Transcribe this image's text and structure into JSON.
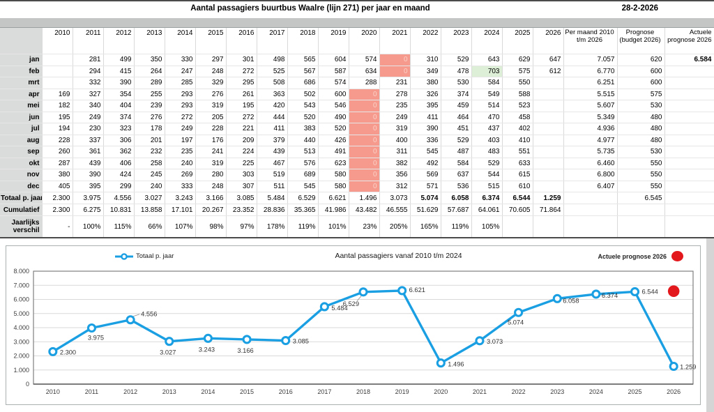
{
  "title": "Aantal passagiers buurtbus Waalre (lijn 271) per jaar en maand",
  "date": "28-2-2026",
  "colors": {
    "accent_blue": "#1b9fe3",
    "accent_red": "#e3181d",
    "salmon_fill": "#f59a8c",
    "green_fill": "#ddefd6",
    "band_gray": "#c3c6c5",
    "label_gray": "#dadcdb"
  },
  "table": {
    "years": [
      "2010",
      "2011",
      "2012",
      "2013",
      "2014",
      "2015",
      "2016",
      "2017",
      "2018",
      "2019",
      "2020",
      "2021",
      "2022",
      "2023",
      "2024",
      "2025",
      "2026"
    ],
    "extra_headers": [
      "Per maand 2010 t/m 2026",
      "Prognose (budget 2026)",
      "Actuele prognose 2026"
    ],
    "months": [
      {
        "label": "jan",
        "values": [
          "",
          "281",
          "499",
          "350",
          "330",
          "297",
          "301",
          "498",
          "565",
          "604",
          "574",
          "0",
          "310",
          "529",
          "643",
          "629",
          "647"
        ],
        "per": "7.057",
        "prog": "620",
        "act": "6.584",
        "fills": {
          "11": "salmon"
        },
        "corners": {
          "11": "red-tr"
        }
      },
      {
        "label": "feb",
        "values": [
          "",
          "294",
          "415",
          "264",
          "247",
          "248",
          "272",
          "525",
          "567",
          "587",
          "634",
          "0",
          "349",
          "478",
          "703",
          "575",
          "612"
        ],
        "per": "6.770",
        "prog": "600",
        "act": "",
        "fills": {
          "11": "salmon",
          "14": "greenfill"
        },
        "corners": {
          "11": "red-tr",
          "14": "red-tr"
        }
      },
      {
        "label": "mrt",
        "values": [
          "",
          "332",
          "390",
          "289",
          "285",
          "329",
          "295",
          "508",
          "686",
          "574",
          "288",
          "231",
          "380",
          "530",
          "584",
          "550",
          ""
        ],
        "per": "6.251",
        "prog": "600",
        "act": "",
        "fills": {},
        "corners": {
          "10": "red-tr",
          "11": "red-tr"
        }
      },
      {
        "label": "apr",
        "values": [
          "169",
          "327",
          "354",
          "255",
          "293",
          "276",
          "261",
          "363",
          "502",
          "600",
          "0",
          "278",
          "326",
          "374",
          "549",
          "588",
          ""
        ],
        "per": "5.515",
        "prog": "575",
        "act": "",
        "fills": {
          "10": "salmon"
        },
        "corners": {}
      },
      {
        "label": "mei",
        "values": [
          "182",
          "340",
          "404",
          "239",
          "293",
          "319",
          "195",
          "420",
          "543",
          "546",
          "0",
          "235",
          "395",
          "459",
          "514",
          "523",
          ""
        ],
        "per": "5.607",
        "prog": "530",
        "act": "",
        "fills": {
          "10": "salmon"
        },
        "corners": {}
      },
      {
        "label": "jun",
        "values": [
          "195",
          "249",
          "374",
          "276",
          "272",
          "205",
          "272",
          "444",
          "520",
          "490",
          "0",
          "249",
          "411",
          "464",
          "470",
          "458",
          ""
        ],
        "per": "5.349",
        "prog": "480",
        "act": "",
        "fills": {
          "10": "salmon"
        },
        "corners": {}
      },
      {
        "label": "jul",
        "values": [
          "194",
          "230",
          "323",
          "178",
          "249",
          "228",
          "221",
          "411",
          "383",
          "520",
          "0",
          "319",
          "390",
          "451",
          "437",
          "402",
          ""
        ],
        "per": "4.936",
        "prog": "480",
        "act": "",
        "fills": {
          "10": "salmon"
        },
        "corners": {}
      },
      {
        "label": "aug",
        "values": [
          "228",
          "337",
          "306",
          "201",
          "197",
          "176",
          "209",
          "379",
          "440",
          "426",
          "0",
          "400",
          "336",
          "529",
          "403",
          "410",
          ""
        ],
        "per": "4.977",
        "prog": "480",
        "act": "",
        "fills": {
          "10": "salmon"
        },
        "corners": {}
      },
      {
        "label": "sep",
        "values": [
          "260",
          "361",
          "362",
          "232",
          "235",
          "241",
          "224",
          "439",
          "513",
          "491",
          "0",
          "311",
          "545",
          "487",
          "483",
          "551",
          ""
        ],
        "per": "5.735",
        "prog": "530",
        "act": "",
        "fills": {
          "10": "salmon"
        },
        "corners": {}
      },
      {
        "label": "okt",
        "values": [
          "287",
          "439",
          "406",
          "258",
          "240",
          "319",
          "225",
          "467",
          "576",
          "623",
          "0",
          "382",
          "492",
          "584",
          "529",
          "633",
          ""
        ],
        "per": "6.460",
        "prog": "550",
        "act": "",
        "fills": {
          "10": "salmon"
        },
        "corners": {}
      },
      {
        "label": "nov",
        "values": [
          "380",
          "390",
          "424",
          "245",
          "269",
          "280",
          "303",
          "519",
          "689",
          "580",
          "0",
          "356",
          "569",
          "637",
          "544",
          "615",
          ""
        ],
        "per": "6.800",
        "prog": "550",
        "act": "",
        "fills": {
          "10": "salmon"
        },
        "corners": {}
      },
      {
        "label": "dec",
        "values": [
          "405",
          "395",
          "299",
          "240",
          "333",
          "248",
          "307",
          "511",
          "545",
          "580",
          "0",
          "312",
          "571",
          "536",
          "515",
          "610",
          ""
        ],
        "per": "6.407",
        "prog": "550",
        "act": "",
        "fills": {
          "10": "salmon"
        },
        "corners": {}
      }
    ],
    "summary": [
      {
        "label": "Totaal p. jaar",
        "values": [
          "2.300",
          "3.975",
          "4.556",
          "3.027",
          "3.243",
          "3.166",
          "3.085",
          "5.484",
          "6.529",
          "6.621",
          "1.496",
          "3.073",
          "5.074",
          "6.058",
          "6.374",
          "6.544",
          "1.259"
        ],
        "per": "",
        "prog": "6.545",
        "act": "",
        "bold_from": 12,
        "corners": {
          "13": "green-tr",
          "14": "green-tr",
          "15": "green-tr",
          "16": "green-tr"
        }
      },
      {
        "label": "Cumulatief",
        "values": [
          "2.300",
          "6.275",
          "10.831",
          "13.858",
          "17.101",
          "20.267",
          "23.352",
          "28.836",
          "35.365",
          "41.986",
          "43.482",
          "46.555",
          "51.629",
          "57.687",
          "64.061",
          "70.605",
          "71.864"
        ],
        "per": "",
        "prog": "",
        "act": "",
        "corners": {}
      },
      {
        "label": "Jaarlijks verschil",
        "values": [
          "-",
          "100%",
          "115%",
          "66%",
          "107%",
          "98%",
          "97%",
          "178%",
          "119%",
          "101%",
          "23%",
          "205%",
          "165%",
          "119%",
          "105%",
          "",
          ""
        ],
        "per": "",
        "prog": "",
        "act": "",
        "corners": {}
      }
    ]
  },
  "chart_data": {
    "type": "line",
    "title": "Aantal passagiers vanaf 2010 t/m 2024",
    "categories": [
      "2010",
      "2011",
      "2012",
      "2013",
      "2014",
      "2015",
      "2016",
      "2017",
      "2018",
      "2019",
      "2020",
      "2021",
      "2022",
      "2023",
      "2024",
      "2025",
      "2026"
    ],
    "series": [
      {
        "name": "Totaal p. jaar",
        "values": [
          2300,
          3975,
          4556,
          3027,
          3243,
          3166,
          3085,
          5484,
          6529,
          6621,
          1496,
          3073,
          5074,
          6058,
          6374,
          6544,
          1259
        ],
        "labels": [
          "2.300",
          "3.975",
          "4.556",
          "3.027",
          "3.243",
          "3.166",
          "3.085",
          "5.484",
          "6.529",
          "6.621",
          "1.496",
          "3.073",
          "5.074",
          "6.058",
          "6.374",
          "6.544",
          "1.259"
        ],
        "color": "#1b9fe3"
      }
    ],
    "point_series": {
      "name": "Actuele prognose 2026",
      "category": "2026",
      "value": 6584,
      "color": "#e3181d"
    },
    "ylim": [
      0,
      8000
    ],
    "yticks": [
      "0",
      "1.000",
      "2.000",
      "3.000",
      "4.000",
      "5.000",
      "6.000",
      "7.000",
      "8.000"
    ],
    "grid": true,
    "legend_position": "top"
  }
}
